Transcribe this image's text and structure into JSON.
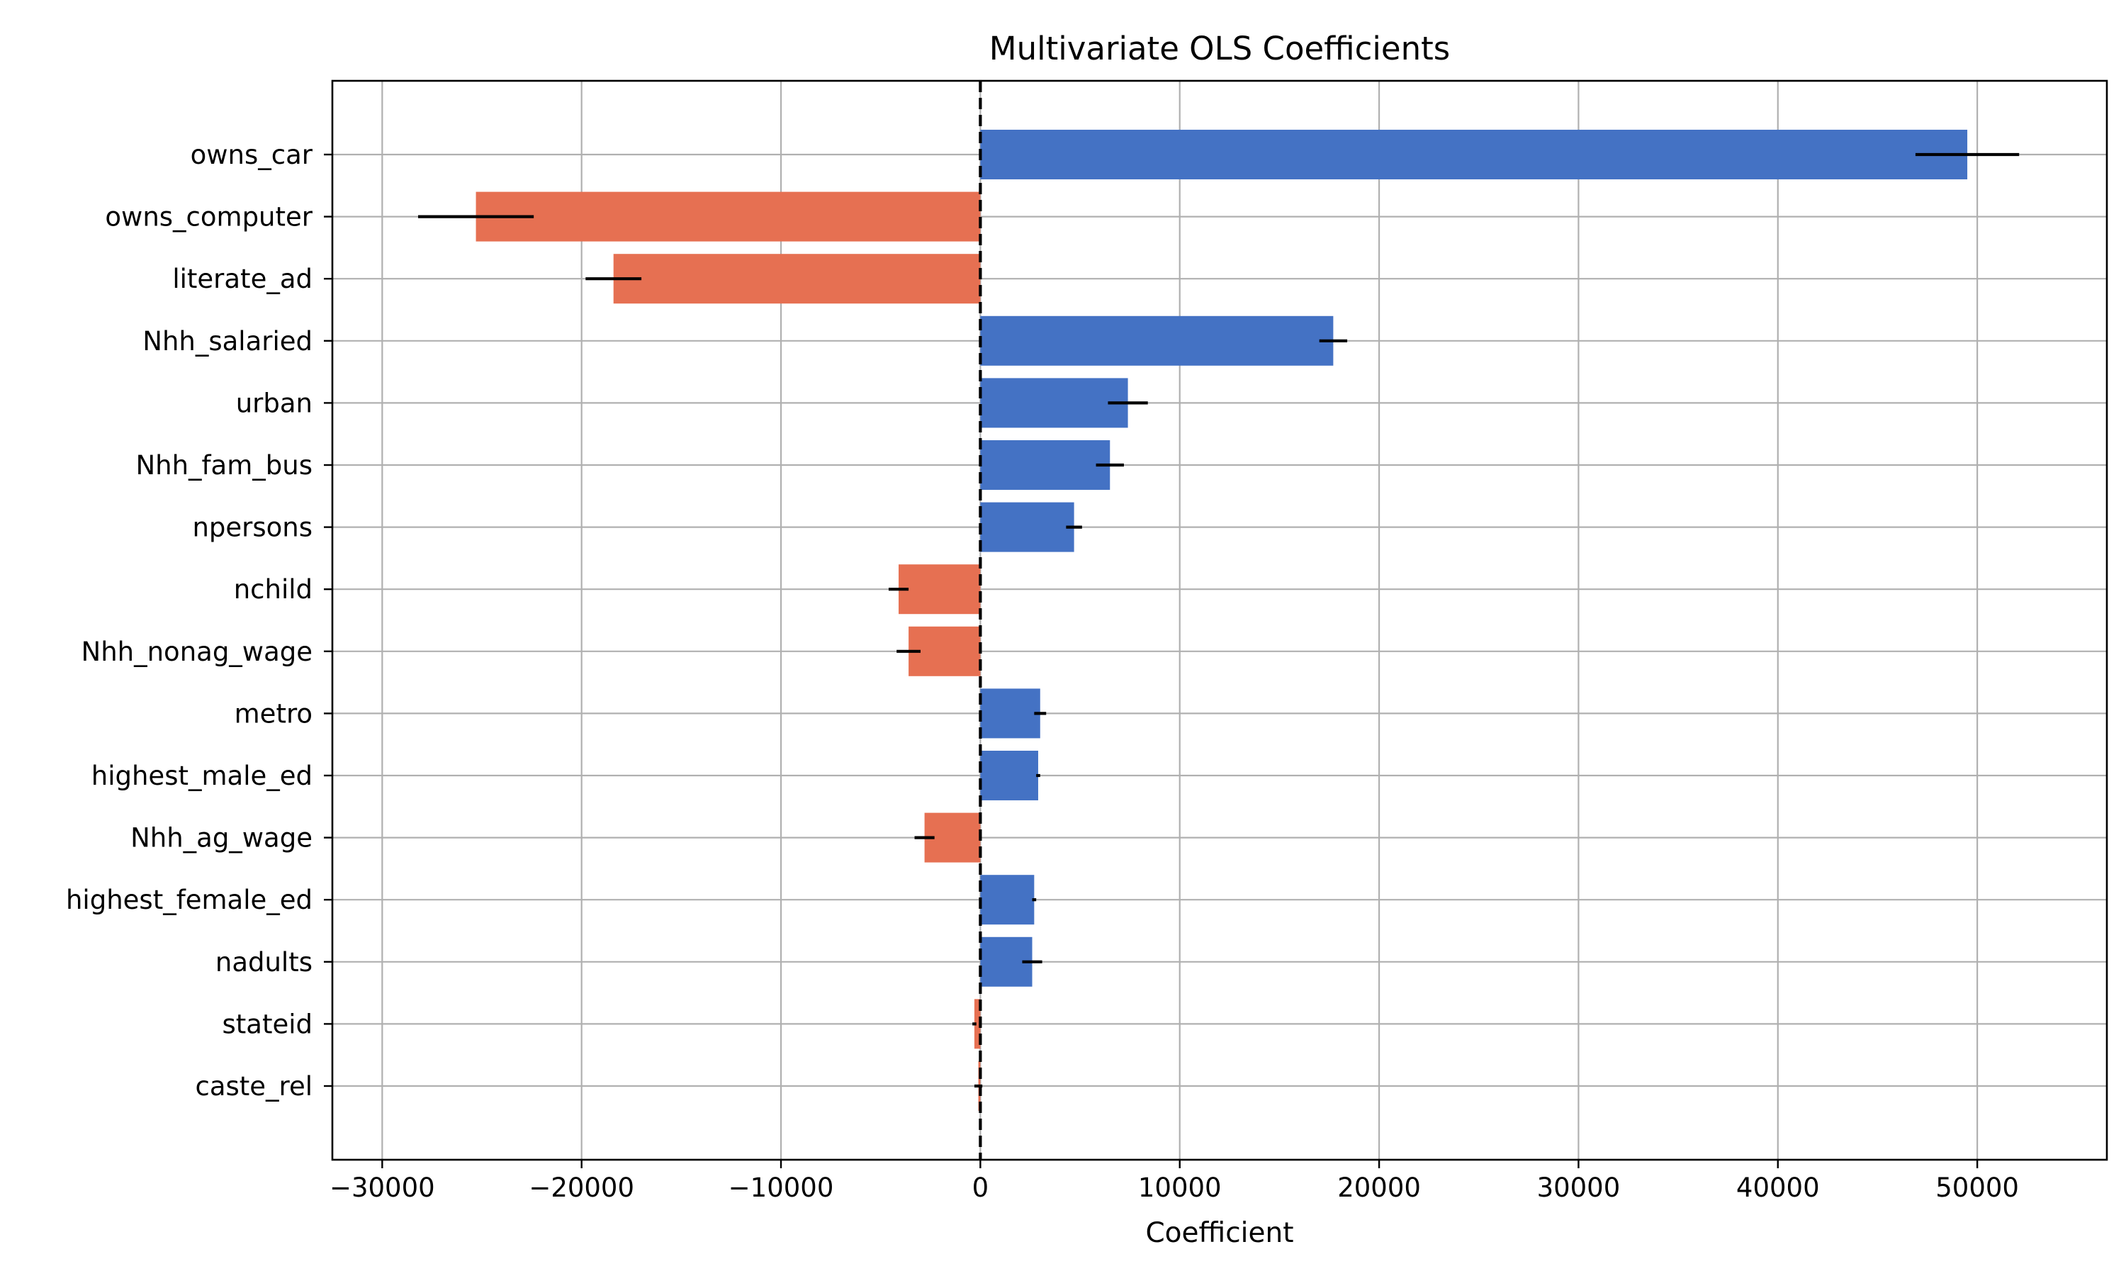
{
  "chart_data": {
    "type": "bar",
    "orientation": "horizontal",
    "title": "Multivariate OLS Coefficients",
    "xlabel": "Coefficient",
    "ylabel": "",
    "xlim": [
      -32500,
      56500
    ],
    "xticks": [
      -30000,
      -20000,
      -10000,
      0,
      10000,
      20000,
      30000,
      40000,
      50000
    ],
    "xtick_labels": [
      "−30000",
      "−20000",
      "−10000",
      "0",
      "10000",
      "20000",
      "30000",
      "40000",
      "50000"
    ],
    "grid": true,
    "zero_line": "dashed",
    "colors": {
      "positive": "#4472c4",
      "negative": "#e67052"
    },
    "categories": [
      "owns_car",
      "owns_computer",
      "literate_ad",
      "Nhh_salaried",
      "urban",
      "Nhh_fam_bus",
      "npersons",
      "nchild",
      "Nhh_nonag_wage",
      "metro",
      "highest_male_ed",
      "Nhh_ag_wage",
      "highest_female_ed",
      "nadults",
      "stateid",
      "caste_rel"
    ],
    "values": [
      49500,
      -25300,
      -18400,
      17700,
      7400,
      6500,
      4700,
      -4100,
      -3600,
      3000,
      2900,
      -2800,
      2700,
      2600,
      -300,
      -100
    ],
    "error": [
      2600,
      2900,
      1400,
      700,
      1000,
      700,
      400,
      500,
      600,
      300,
      100,
      500,
      100,
      500,
      100,
      200
    ]
  }
}
